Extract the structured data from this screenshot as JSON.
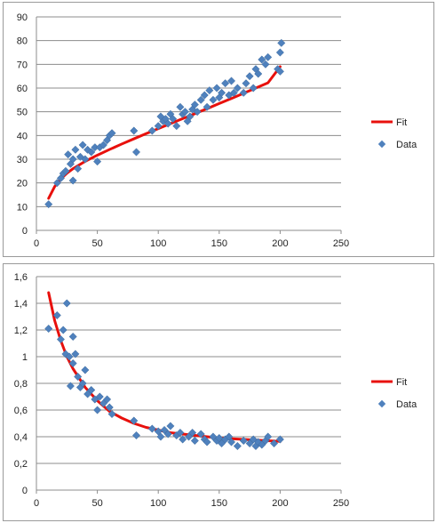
{
  "colors": {
    "fit": "#e8100c",
    "data": "#4f81bd",
    "grid": "#8c8c8c",
    "axis": "#8c8c8c"
  },
  "chart_data": [
    {
      "type": "scatter",
      "title": "",
      "xlabel": "",
      "ylabel": "",
      "xlim": [
        0,
        250
      ],
      "ylim": [
        0,
        90
      ],
      "x_ticks": [
        "0",
        "50",
        "100",
        "150",
        "200",
        "250"
      ],
      "y_ticks": [
        "0",
        "10",
        "20",
        "30",
        "40",
        "50",
        "60",
        "70",
        "80",
        "90"
      ],
      "grid": "horizontal",
      "legend_position": "right",
      "series": [
        {
          "name": "Fit",
          "kind": "line",
          "x": [
            10,
            15,
            20,
            25,
            30,
            40,
            50,
            60,
            70,
            80,
            90,
            100,
            110,
            120,
            130,
            140,
            150,
            160,
            170,
            180,
            190,
            200
          ],
          "y": [
            13.5,
            18.5,
            21.7,
            24.1,
            26,
            29.1,
            31.7,
            34.1,
            36.4,
            38.6,
            40.8,
            42.9,
            45,
            47.1,
            49.2,
            51.3,
            53.5,
            55.6,
            57.8,
            60,
            62.2,
            69
          ]
        },
        {
          "name": "Data",
          "kind": "points",
          "x": [
            10,
            17,
            20,
            22,
            24,
            26,
            28,
            30,
            30,
            32,
            34,
            36,
            38,
            40,
            42,
            45,
            48,
            50,
            52,
            55,
            58,
            60,
            62,
            80,
            82,
            95,
            100,
            102,
            104,
            106,
            108,
            110,
            112,
            115,
            118,
            120,
            122,
            124,
            126,
            128,
            130,
            132,
            135,
            138,
            140,
            142,
            145,
            148,
            150,
            152,
            155,
            158,
            160,
            162,
            165,
            170,
            172,
            175,
            178,
            180,
            182,
            185,
            188,
            190,
            198,
            200,
            200,
            201
          ],
          "y": [
            11,
            20,
            22,
            24,
            25,
            32,
            28,
            21,
            30,
            34,
            26,
            31,
            36,
            30,
            34,
            33,
            35,
            29,
            35,
            36,
            38,
            40,
            41,
            42,
            33,
            42,
            44,
            48,
            46,
            47,
            45,
            49,
            47,
            44,
            52,
            49,
            50,
            46,
            48,
            51,
            53,
            50,
            55,
            57,
            52,
            59,
            55,
            60,
            56,
            58,
            62,
            57,
            63,
            58,
            60,
            58,
            62,
            65,
            60,
            68,
            66,
            72,
            70,
            73,
            68,
            75,
            67,
            79
          ]
        }
      ]
    },
    {
      "type": "scatter",
      "title": "",
      "xlabel": "",
      "ylabel": "",
      "xlim": [
        0,
        250
      ],
      "ylim": [
        0,
        1.6
      ],
      "x_ticks": [
        "0",
        "50",
        "100",
        "150",
        "200",
        "250"
      ],
      "y_ticks": [
        "0",
        "0,2",
        "0,4",
        "0,6",
        "0,8",
        "1",
        "1,2",
        "1,4",
        "1,6"
      ],
      "grid": "horizontal",
      "legend_position": "right",
      "series": [
        {
          "name": "Fit",
          "kind": "line",
          "x": [
            10,
            15,
            20,
            25,
            30,
            40,
            50,
            60,
            70,
            80,
            90,
            100,
            110,
            120,
            130,
            140,
            150,
            160,
            170,
            180,
            190,
            200
          ],
          "y": [
            1.48,
            1.27,
            1.12,
            1.0,
            0.91,
            0.77,
            0.67,
            0.59,
            0.54,
            0.5,
            0.47,
            0.45,
            0.43,
            0.42,
            0.41,
            0.4,
            0.39,
            0.385,
            0.38,
            0.375,
            0.37,
            0.365
          ]
        },
        {
          "name": "Data",
          "kind": "points",
          "x": [
            10,
            17,
            20,
            22,
            24,
            25,
            27,
            28,
            30,
            30,
            32,
            34,
            36,
            38,
            40,
            42,
            45,
            48,
            50,
            52,
            55,
            58,
            60,
            62,
            80,
            82,
            95,
            100,
            102,
            105,
            108,
            110,
            115,
            118,
            120,
            125,
            128,
            130,
            135,
            138,
            140,
            145,
            148,
            150,
            152,
            155,
            158,
            160,
            165,
            170,
            175,
            178,
            180,
            182,
            185,
            188,
            190,
            195,
            200
          ],
          "y": [
            1.21,
            1.31,
            1.13,
            1.2,
            1.02,
            1.4,
            1.0,
            0.78,
            0.95,
            1.15,
            1.02,
            0.85,
            0.77,
            0.8,
            0.9,
            0.72,
            0.75,
            0.68,
            0.6,
            0.7,
            0.65,
            0.68,
            0.62,
            0.57,
            0.52,
            0.41,
            0.46,
            0.44,
            0.4,
            0.45,
            0.42,
            0.48,
            0.41,
            0.43,
            0.38,
            0.4,
            0.43,
            0.37,
            0.42,
            0.38,
            0.36,
            0.4,
            0.37,
            0.39,
            0.35,
            0.38,
            0.4,
            0.36,
            0.33,
            0.37,
            0.35,
            0.38,
            0.33,
            0.36,
            0.34,
            0.37,
            0.4,
            0.35,
            0.38
          ]
        }
      ]
    }
  ]
}
